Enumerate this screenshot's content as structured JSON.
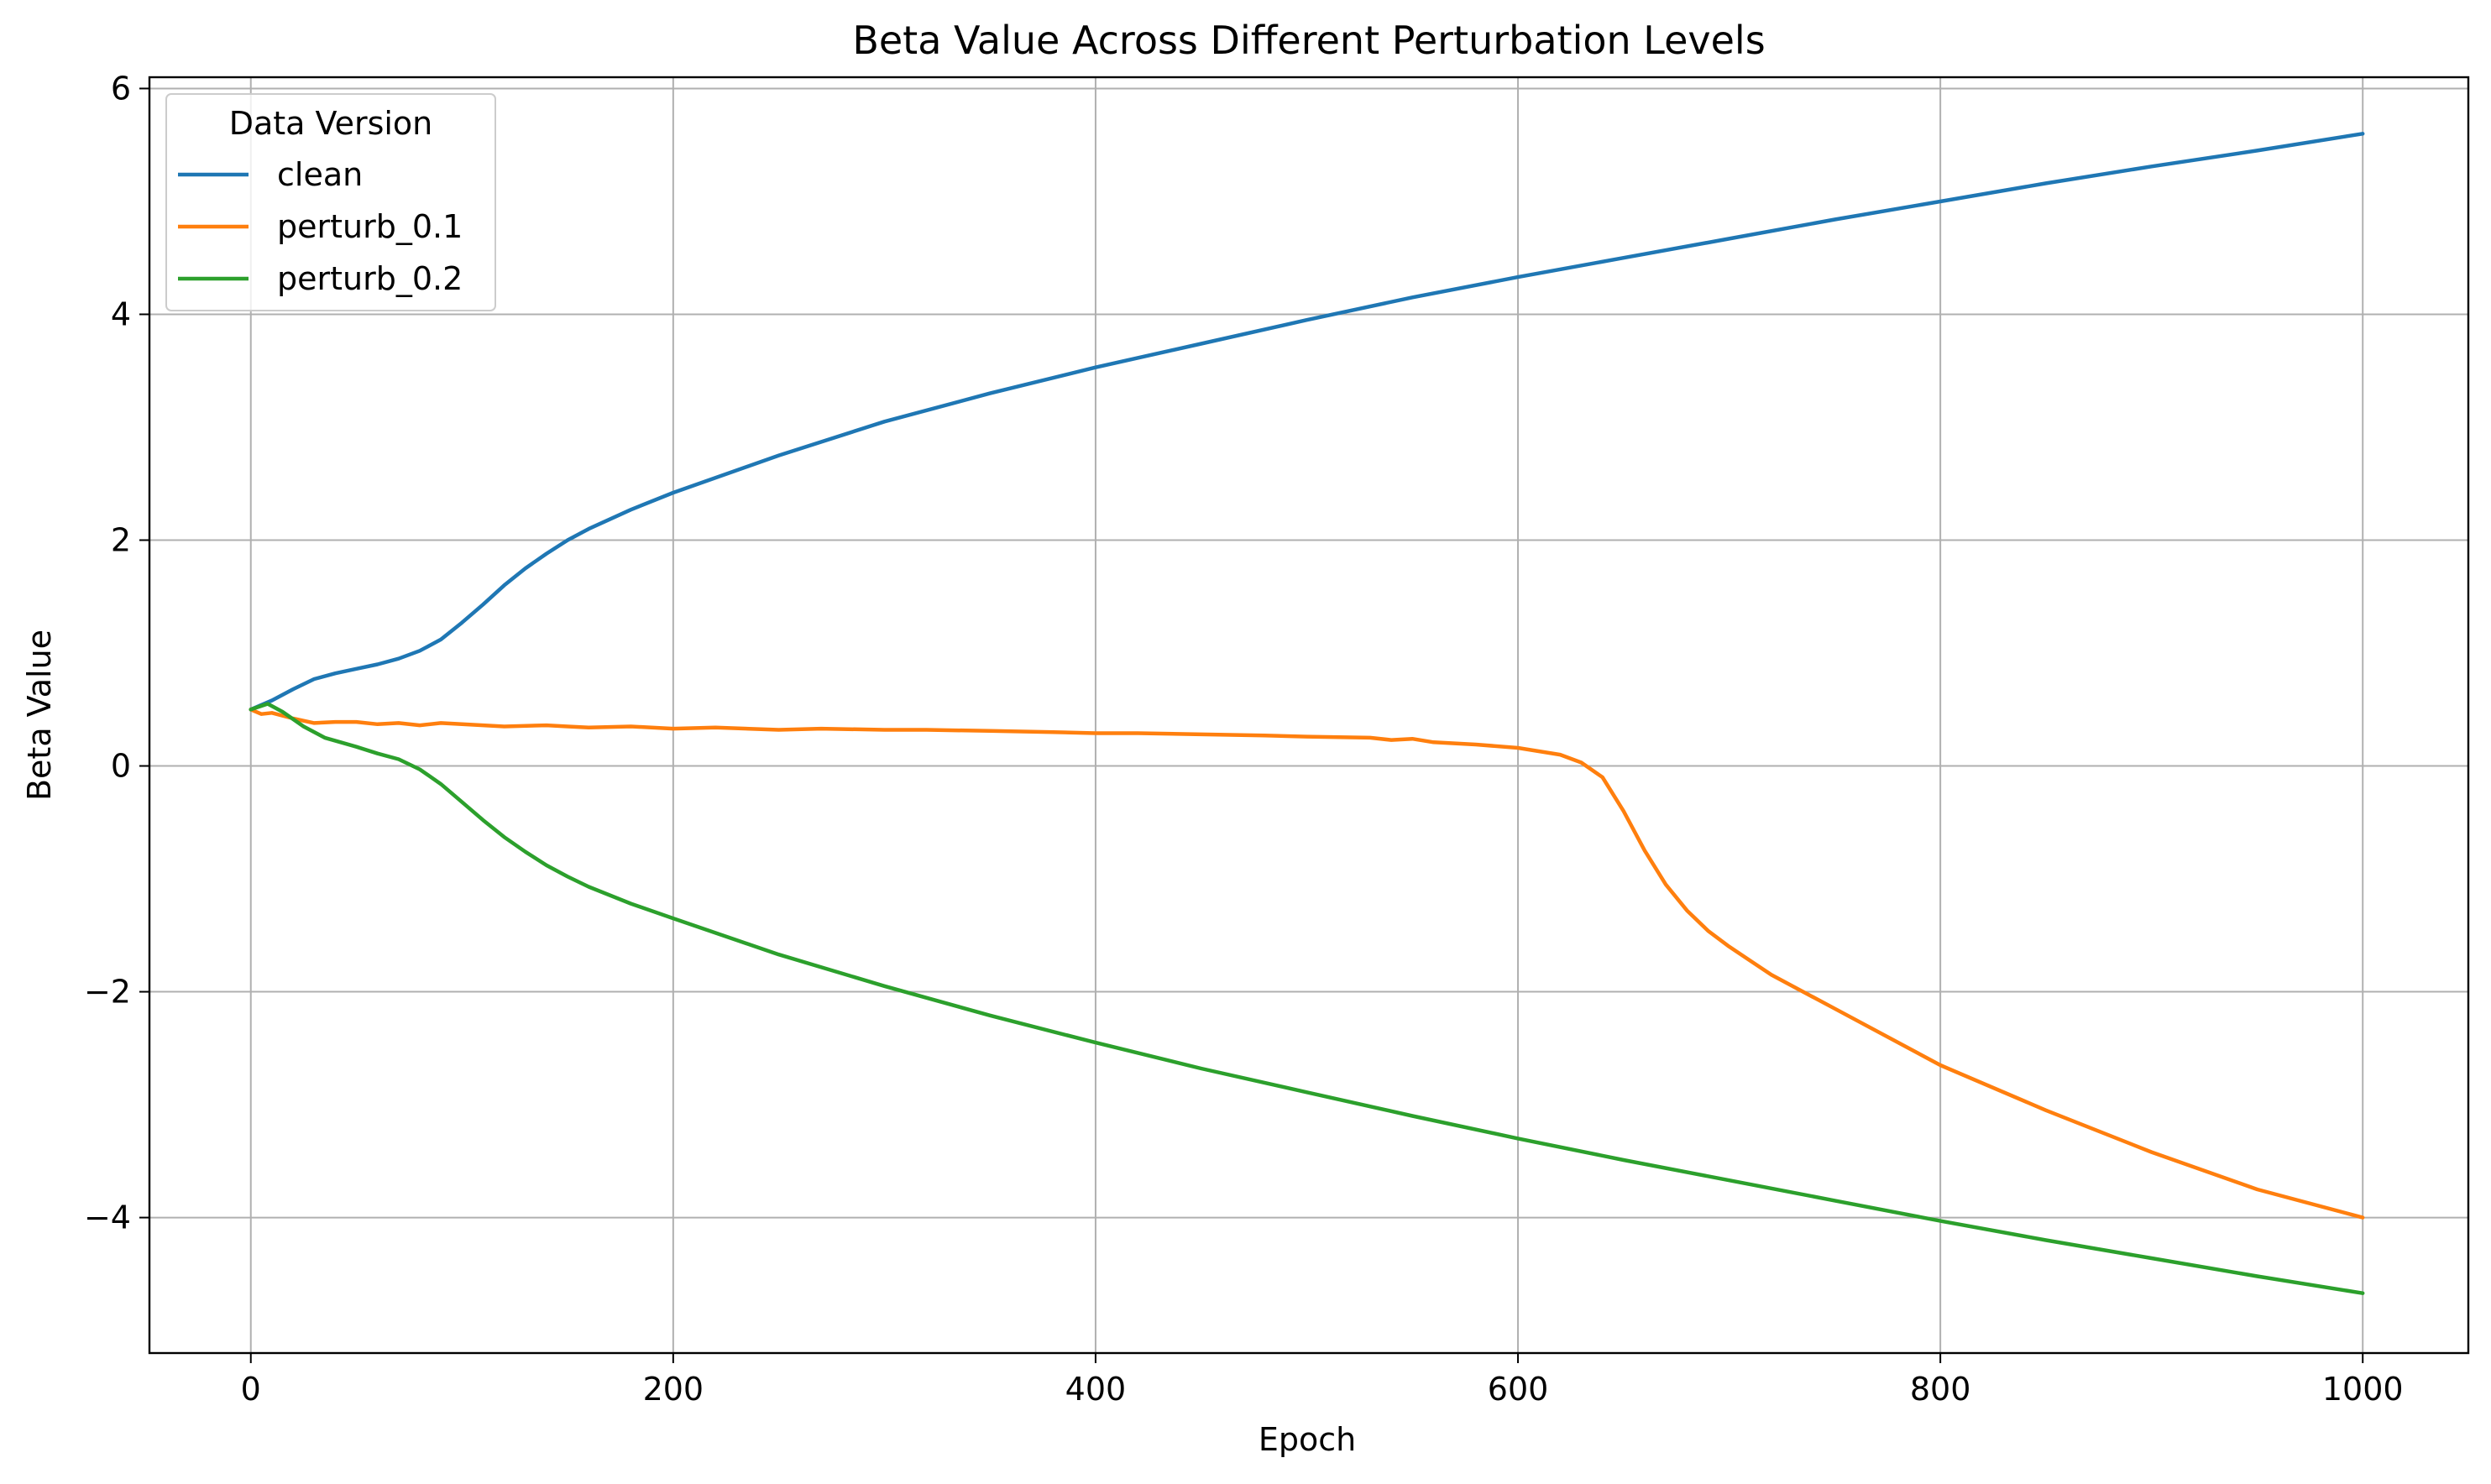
{
  "chart_data": {
    "type": "line",
    "title": "Beta Value Across Different Perturbation Levels",
    "xlabel": "Epoch",
    "ylabel": "Beta Value",
    "xlim": [
      -48,
      1050
    ],
    "ylim": [
      -5.2,
      6.1
    ],
    "xticks": [
      0,
      200,
      400,
      600,
      800,
      1000
    ],
    "yticks": [
      -4,
      -2,
      0,
      2,
      4,
      6
    ],
    "xtick_labels": [
      "0",
      "200",
      "400",
      "600",
      "800",
      "1000"
    ],
    "ytick_labels": [
      "−4",
      "−2",
      "0",
      "2",
      "4",
      "6"
    ],
    "grid": true,
    "legend": {
      "title": "Data Version",
      "placement": "top-left"
    },
    "series": [
      {
        "name": "clean",
        "color": "#1f77b4",
        "x": [
          0,
          10,
          20,
          30,
          40,
          50,
          60,
          70,
          80,
          90,
          100,
          110,
          120,
          130,
          140,
          150,
          160,
          180,
          200,
          250,
          300,
          350,
          400,
          450,
          500,
          550,
          600,
          650,
          700,
          750,
          800,
          850,
          900,
          950,
          1000
        ],
        "y": [
          0.5,
          0.58,
          0.68,
          0.77,
          0.82,
          0.86,
          0.9,
          0.95,
          1.02,
          1.12,
          1.27,
          1.43,
          1.6,
          1.75,
          1.88,
          2.0,
          2.1,
          2.27,
          2.42,
          2.75,
          3.05,
          3.3,
          3.53,
          3.74,
          3.95,
          4.15,
          4.33,
          4.5,
          4.67,
          4.84,
          5.0,
          5.16,
          5.31,
          5.45,
          5.6
        ]
      },
      {
        "name": "perturb_0.1",
        "color": "#ff7f0e",
        "x": [
          0,
          5,
          10,
          20,
          30,
          40,
          50,
          60,
          70,
          80,
          90,
          100,
          120,
          140,
          150,
          160,
          180,
          200,
          220,
          250,
          270,
          300,
          320,
          350,
          380,
          400,
          420,
          450,
          480,
          500,
          530,
          540,
          550,
          560,
          580,
          600,
          620,
          630,
          640,
          650,
          660,
          670,
          680,
          690,
          700,
          720,
          750,
          800,
          850,
          900,
          950,
          1000
        ],
        "y": [
          0.5,
          0.46,
          0.47,
          0.42,
          0.38,
          0.39,
          0.39,
          0.37,
          0.38,
          0.36,
          0.38,
          0.37,
          0.35,
          0.36,
          0.35,
          0.34,
          0.35,
          0.33,
          0.34,
          0.32,
          0.33,
          0.32,
          0.32,
          0.31,
          0.3,
          0.29,
          0.29,
          0.28,
          0.27,
          0.26,
          0.25,
          0.23,
          0.24,
          0.21,
          0.19,
          0.16,
          0.1,
          0.03,
          -0.1,
          -0.4,
          -0.75,
          -1.05,
          -1.28,
          -1.46,
          -1.6,
          -1.85,
          -2.15,
          -2.65,
          -3.05,
          -3.42,
          -3.75,
          -4.0
        ]
      },
      {
        "name": "perturb_0.2",
        "color": "#2ca02c",
        "x": [
          0,
          8,
          15,
          25,
          35,
          50,
          60,
          70,
          80,
          90,
          100,
          110,
          120,
          130,
          140,
          150,
          160,
          180,
          200,
          250,
          300,
          350,
          400,
          450,
          500,
          550,
          600,
          650,
          700,
          750,
          800,
          850,
          900,
          950,
          1000
        ],
        "y": [
          0.5,
          0.55,
          0.48,
          0.35,
          0.25,
          0.17,
          0.11,
          0.06,
          -0.03,
          -0.16,
          -0.32,
          -0.48,
          -0.63,
          -0.76,
          -0.88,
          -0.98,
          -1.07,
          -1.22,
          -1.35,
          -1.67,
          -1.95,
          -2.21,
          -2.45,
          -2.68,
          -2.89,
          -3.1,
          -3.3,
          -3.49,
          -3.67,
          -3.85,
          -4.03,
          -4.2,
          -4.36,
          -4.52,
          -4.67
        ]
      }
    ]
  }
}
